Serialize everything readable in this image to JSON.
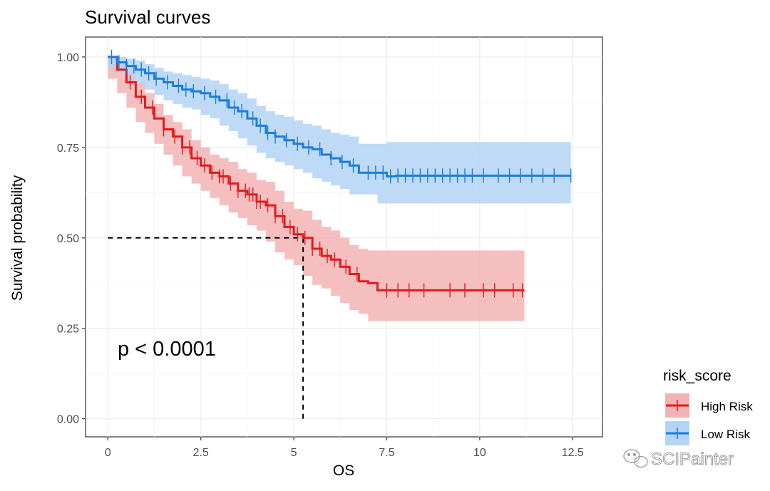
{
  "chart_data": {
    "type": "line",
    "title": "Survival curves",
    "xlabel": "OS",
    "ylabel": "Survival probability",
    "xlim": [
      -0.6,
      13.3
    ],
    "ylim": [
      -0.05,
      1.055
    ],
    "x_ticks": [
      0,
      2.5,
      5,
      7.5,
      10,
      12.5
    ],
    "x_tick_labels": [
      "0",
      "2.5",
      "5",
      "7.5",
      "10",
      "12.5"
    ],
    "y_ticks": [
      0,
      0.25,
      0.5,
      0.75,
      1.0
    ],
    "y_tick_labels": [
      "0.00",
      "0.25",
      "0.50",
      "0.75",
      "1.00"
    ],
    "grid": true,
    "annotation": "p < 0.0001",
    "median_line": {
      "x": 5.25,
      "y": 0.5
    },
    "legend": {
      "title": "risk_score",
      "position": "right",
      "entries": [
        "High Risk",
        "Low Risk"
      ]
    },
    "watermark": "SCIPainter",
    "series": [
      {
        "name": "High Risk",
        "color": "#e41a1c",
        "fill": "#f3b3b4",
        "x": [
          0,
          0.25,
          0.5,
          0.75,
          1.0,
          1.25,
          1.5,
          1.75,
          2.0,
          2.25,
          2.5,
          2.75,
          3.0,
          3.25,
          3.5,
          3.75,
          4.0,
          4.25,
          4.5,
          4.75,
          5.0,
          5.25,
          5.5,
          5.75,
          6.0,
          6.25,
          6.5,
          6.75,
          7.0,
          7.25,
          8.0,
          9.0,
          10.0,
          11.2
        ],
        "y": [
          1.0,
          0.965,
          0.93,
          0.89,
          0.86,
          0.83,
          0.8,
          0.78,
          0.75,
          0.72,
          0.7,
          0.68,
          0.67,
          0.65,
          0.63,
          0.62,
          0.6,
          0.59,
          0.56,
          0.53,
          0.51,
          0.5,
          0.47,
          0.45,
          0.44,
          0.42,
          0.4,
          0.38,
          0.375,
          0.355,
          0.355,
          0.355,
          0.355,
          0.355
        ],
        "lower": [
          1.0,
          0.94,
          0.9,
          0.86,
          0.82,
          0.79,
          0.76,
          0.73,
          0.7,
          0.67,
          0.65,
          0.63,
          0.61,
          0.59,
          0.57,
          0.555,
          0.535,
          0.52,
          0.49,
          0.46,
          0.44,
          0.425,
          0.395,
          0.37,
          0.36,
          0.34,
          0.32,
          0.3,
          0.29,
          0.27,
          0.27,
          0.27,
          0.27,
          0.27
        ],
        "upper": [
          1.0,
          0.99,
          0.96,
          0.93,
          0.9,
          0.87,
          0.84,
          0.82,
          0.8,
          0.77,
          0.75,
          0.73,
          0.72,
          0.71,
          0.69,
          0.68,
          0.66,
          0.655,
          0.63,
          0.6,
          0.58,
          0.575,
          0.55,
          0.53,
          0.52,
          0.5,
          0.48,
          0.47,
          0.465,
          0.465,
          0.465,
          0.465,
          0.465,
          0.465
        ],
        "censor_x": [
          0.6,
          0.9,
          1.2,
          1.5,
          1.8,
          2.0,
          2.2,
          2.4,
          2.6,
          2.8,
          3.0,
          3.1,
          3.3,
          3.5,
          3.7,
          3.8,
          3.9,
          4.0,
          4.1,
          4.3,
          4.5,
          4.7,
          4.9,
          5.1,
          5.3,
          5.5,
          5.7,
          5.9,
          6.1,
          6.4,
          6.7,
          7.5,
          7.8,
          8.1,
          8.5,
          9.2,
          9.6,
          10.1,
          10.4,
          10.9,
          11.15
        ]
      },
      {
        "name": "Low Risk",
        "color": "#1a7de0",
        "fill": "#b4d4f5",
        "x": [
          0,
          0.25,
          0.5,
          0.75,
          1.0,
          1.25,
          1.5,
          1.75,
          2.0,
          2.25,
          2.5,
          2.75,
          3.0,
          3.25,
          3.5,
          3.75,
          4.0,
          4.25,
          4.5,
          4.75,
          5.0,
          5.25,
          5.5,
          5.75,
          6.0,
          6.25,
          6.5,
          6.75,
          7.0,
          7.25,
          7.5,
          7.75,
          8.0,
          9.0,
          10.0,
          11.0,
          12.45
        ],
        "y": [
          1.0,
          0.985,
          0.975,
          0.965,
          0.955,
          0.94,
          0.93,
          0.92,
          0.91,
          0.905,
          0.9,
          0.89,
          0.88,
          0.86,
          0.85,
          0.83,
          0.81,
          0.79,
          0.78,
          0.77,
          0.76,
          0.75,
          0.745,
          0.73,
          0.72,
          0.71,
          0.7,
          0.68,
          0.68,
          0.68,
          0.67,
          0.672,
          0.672,
          0.672,
          0.672,
          0.672,
          0.672
        ],
        "lower": [
          1.0,
          0.97,
          0.955,
          0.94,
          0.925,
          0.91,
          0.895,
          0.88,
          0.87,
          0.86,
          0.855,
          0.84,
          0.83,
          0.81,
          0.795,
          0.775,
          0.755,
          0.735,
          0.72,
          0.71,
          0.7,
          0.69,
          0.68,
          0.665,
          0.655,
          0.645,
          0.635,
          0.62,
          0.62,
          0.62,
          0.595,
          0.595,
          0.595,
          0.595,
          0.595,
          0.595,
          0.595
        ],
        "upper": [
          1.0,
          1.0,
          0.995,
          0.99,
          0.98,
          0.97,
          0.96,
          0.955,
          0.95,
          0.945,
          0.94,
          0.935,
          0.925,
          0.91,
          0.9,
          0.885,
          0.865,
          0.85,
          0.84,
          0.835,
          0.825,
          0.815,
          0.81,
          0.8,
          0.79,
          0.785,
          0.78,
          0.76,
          0.76,
          0.76,
          0.765,
          0.765,
          0.765,
          0.765,
          0.765,
          0.765,
          0.765
        ],
        "censor_x": [
          0.1,
          0.3,
          0.5,
          0.7,
          0.9,
          1.1,
          1.3,
          1.6,
          1.9,
          2.1,
          2.3,
          2.6,
          2.9,
          3.2,
          3.4,
          3.6,
          3.9,
          4.1,
          4.3,
          4.5,
          4.8,
          5.1,
          5.4,
          5.7,
          6.0,
          6.3,
          6.6,
          7.0,
          7.2,
          7.4,
          7.6,
          7.8,
          8.0,
          8.2,
          8.4,
          8.6,
          8.8,
          9.0,
          9.2,
          9.4,
          9.6,
          9.8,
          10.1,
          10.5,
          10.8,
          11.1,
          11.4,
          11.7,
          12.0,
          12.45
        ]
      }
    ]
  }
}
